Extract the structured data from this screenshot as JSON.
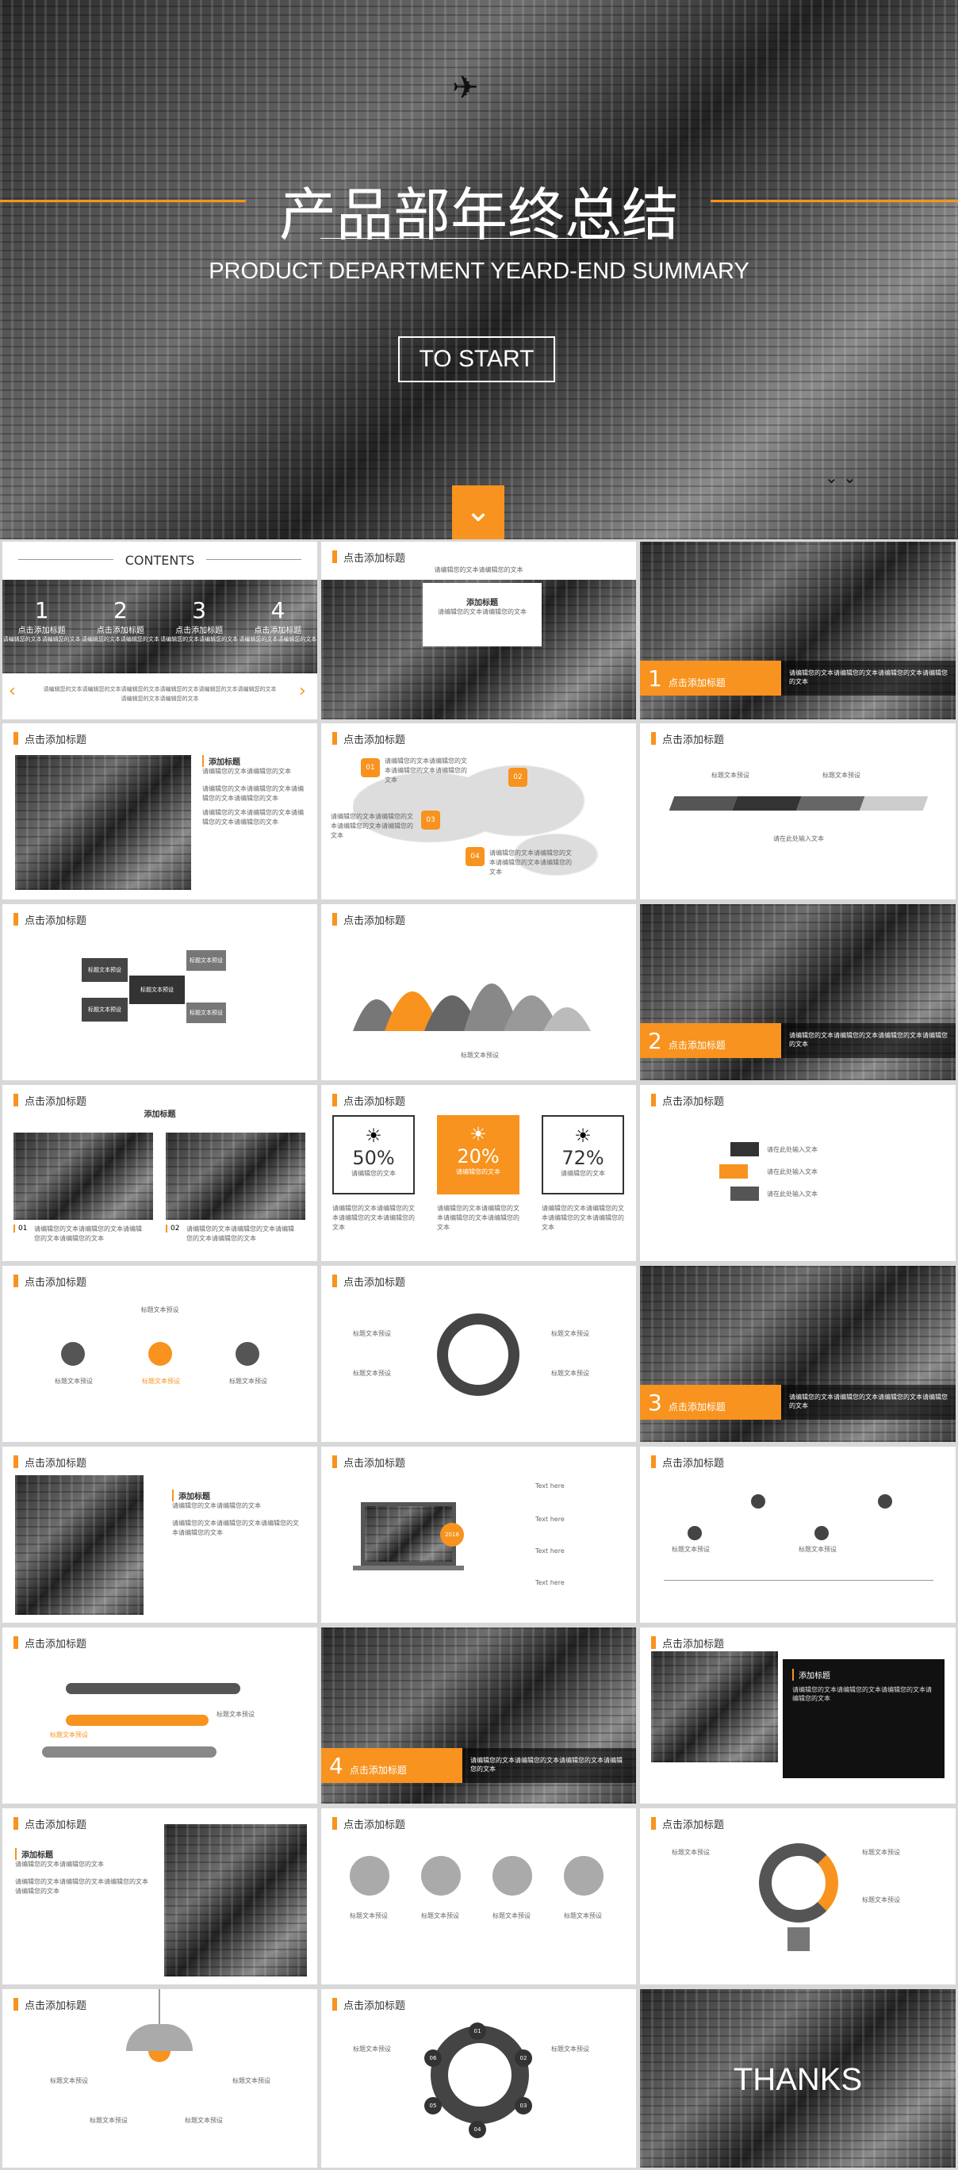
{
  "cover": {
    "title": "产品部年终总结",
    "subtitle": "PRODUCT DEPARTMENT YEARD-END SUMMARY",
    "button": "TO START"
  },
  "contents": {
    "title": "CONTENTS",
    "items": [
      {
        "num": "1",
        "label": "点击添加标题",
        "desc": "请编辑您的文本请编辑您的文本"
      },
      {
        "num": "2",
        "label": "点击添加标题",
        "desc": "请编辑您的文本请编辑您的文本"
      },
      {
        "num": "3",
        "label": "点击添加标题",
        "desc": "请编辑您的文本请编辑您的文本"
      },
      {
        "num": "4",
        "label": "点击添加标题",
        "desc": "请编辑您的文本请编辑您的文本"
      }
    ],
    "footer": "请编辑您的文本请编辑您的文本请编辑您的文本请编辑您的文本请编辑您的文本请编辑您的文本请编辑您的文本请编辑您的文本",
    "prev": "‹",
    "next": "›"
  },
  "common": {
    "slide_title": "点击添加标题",
    "add_title": "添加标题",
    "edit_text": "请编辑您的文本请编辑您的文本",
    "edit_long": "请编辑您的文本请编辑您的文本请编辑您的文本请编辑您的文本",
    "label_text": "标题文本预设",
    "item_text": "请在此处输入文本",
    "text_here": "Text here",
    "thanks": "THANKS",
    "cert_year": "2018"
  },
  "sections": [
    {
      "num": "1",
      "label": "点击添加标题"
    },
    {
      "num": "2",
      "label": "点击添加标题"
    },
    {
      "num": "3",
      "label": "点击添加标题"
    },
    {
      "num": "4",
      "label": "点击添加标题"
    }
  ],
  "percents": [
    {
      "value": "50%",
      "label": "请编辑您的文本"
    },
    {
      "value": "20%",
      "label": "请编辑您的文本"
    },
    {
      "value": "72%",
      "label": "请编辑您的文本"
    }
  ],
  "map_points": [
    "01",
    "02",
    "03",
    "04"
  ],
  "picture_labels": [
    "01",
    "02"
  ],
  "circle_items": [
    "01",
    "02",
    "03",
    "04",
    "05",
    "06"
  ]
}
